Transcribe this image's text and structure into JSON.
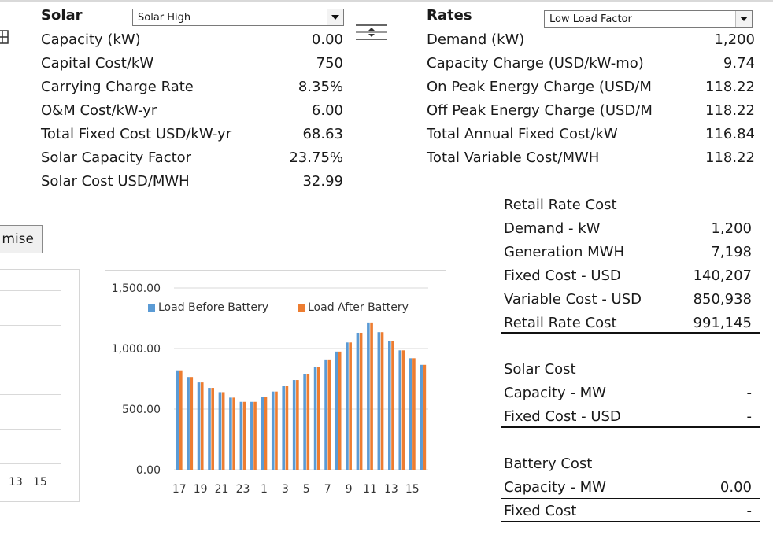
{
  "solar": {
    "header": "Solar",
    "dropdown_value": "Solar High",
    "rows": [
      {
        "label": "Capacity (kW)",
        "value": "0.00"
      },
      {
        "label": "Capital Cost/kW",
        "value": "750"
      },
      {
        "label": "Carrying Charge Rate",
        "value": "8.35%"
      },
      {
        "label": "O&M Cost/kW-yr",
        "value": "6.00"
      },
      {
        "label": "Total Fixed Cost USD/kW-yr",
        "value": "68.63"
      },
      {
        "label": "Solar Capacity Factor",
        "value": "23.75%"
      },
      {
        "label": "Solar Cost USD/MWH",
        "value": "32.99"
      }
    ]
  },
  "rates": {
    "header": "Rates",
    "dropdown_value": "Low Load Factor",
    "rows": [
      {
        "label": "Demand (kW)",
        "value": "1,200"
      },
      {
        "label": "Capacity Charge (USD/kW-mo)",
        "value": "9.74"
      },
      {
        "label": "On Peak Energy Charge (USD/M",
        "value": "118.22"
      },
      {
        "label": "Off Peak Energy Charge (USD/M",
        "value": "118.22"
      },
      {
        "label": "Total Annual Fixed Cost/kW",
        "value": "116.84"
      },
      {
        "label": "Total Variable Cost/MWH",
        "value": "118.22"
      }
    ]
  },
  "retail": {
    "title": "Retail Rate Cost",
    "rows": [
      {
        "label": "Demand - kW",
        "value": "1,200"
      },
      {
        "label": "Generation MWH",
        "value": "7,198"
      },
      {
        "label": "Fixed Cost - USD",
        "value": "140,207"
      },
      {
        "label": "Variable Cost - USD",
        "value": "850,938"
      },
      {
        "label": "Retail Rate Cost",
        "value": "991,145"
      }
    ]
  },
  "solar_cost": {
    "title": "Solar Cost",
    "rows": [
      {
        "label": "Capacity - MW",
        "value": "-"
      },
      {
        "label": "Fixed Cost - USD",
        "value": "-"
      }
    ]
  },
  "battery_cost": {
    "title": "Battery Cost",
    "rows": [
      {
        "label": "Capacity - MW",
        "value": "0.00"
      },
      {
        "label": "Fixed Cost",
        "value": "-"
      }
    ]
  },
  "optimise_button_label": "mise",
  "left_chart_ticks": [
    "13",
    "15"
  ],
  "chart_data": {
    "type": "bar",
    "categories": [
      "17",
      "18",
      "19",
      "20",
      "21",
      "22",
      "23",
      "24",
      "1",
      "2",
      "3",
      "4",
      "5",
      "6",
      "7",
      "8",
      "9",
      "10",
      "11",
      "12",
      "13",
      "14",
      "15",
      "16"
    ],
    "x_tick_labels": [
      "17",
      "19",
      "21",
      "23",
      "1",
      "3",
      "5",
      "7",
      "9",
      "11",
      "13",
      "15"
    ],
    "series": [
      {
        "name": "Load Before Battery",
        "color": "#5b9bd5",
        "values": [
          820,
          765,
          720,
          675,
          640,
          595,
          560,
          560,
          600,
          645,
          690,
          740,
          790,
          850,
          910,
          975,
          1050,
          1130,
          1215,
          1135,
          1060,
          985,
          920,
          865
        ]
      },
      {
        "name": "Load After Battery",
        "color": "#ed7d31",
        "values": [
          820,
          765,
          720,
          675,
          640,
          595,
          560,
          560,
          600,
          645,
          690,
          740,
          790,
          850,
          910,
          975,
          1050,
          1130,
          1215,
          1135,
          1060,
          985,
          920,
          865
        ]
      }
    ],
    "y_ticks": [
      "1,500.00",
      "1,000.00",
      "500.00",
      "0.00"
    ],
    "ylim": [
      0,
      1500
    ],
    "legend_position": "top",
    "grid": true
  }
}
